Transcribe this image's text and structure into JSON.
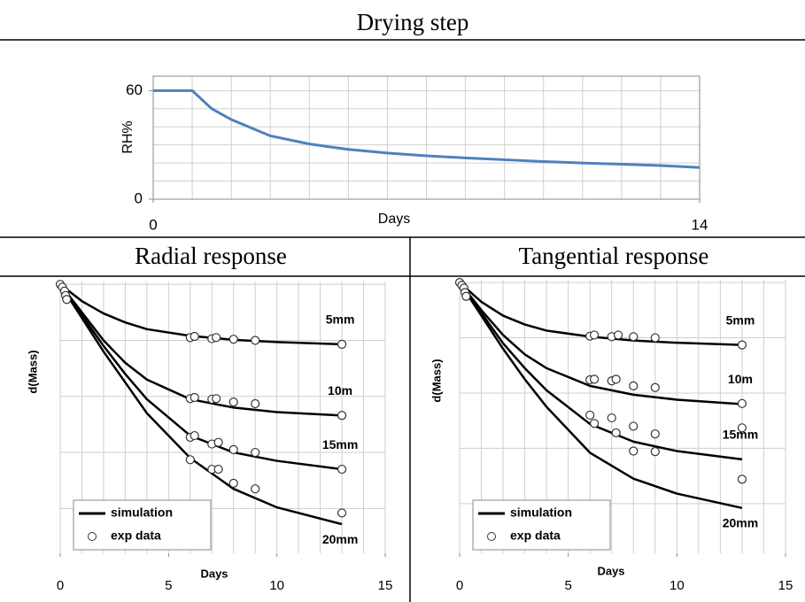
{
  "chart_data": [
    {
      "type": "line",
      "title": "Drying step",
      "xlabel": "Days",
      "ylabel": "RH%",
      "x": [
        0,
        1,
        1.5,
        2,
        3,
        4,
        5,
        6,
        7,
        8,
        9,
        10,
        11,
        12,
        13,
        14
      ],
      "series": [
        {
          "color": "#4f81bd",
          "values": [
            60,
            60,
            50,
            44,
            35,
            30.5,
            27.5,
            25.5,
            24,
            22.8,
            21.8,
            20.8,
            20,
            19.3,
            18.6,
            17.5
          ]
        }
      ],
      "xlim": [
        0,
        14
      ],
      "xticks": [
        0,
        14
      ],
      "ylim": [
        0,
        68
      ],
      "yticks": [
        0,
        60
      ],
      "xgrid_step": 1,
      "ygrid_step": 10
    },
    {
      "type": "line",
      "title": "Radial response",
      "xlabel": "Days",
      "ylabel": "d(Mass)",
      "xlim": [
        0,
        15
      ],
      "xticks": [
        0,
        5,
        10,
        15
      ],
      "ylim": [
        -4.8,
        0.05
      ],
      "xgrid_step": 1,
      "ygrid_step": 1,
      "legend": "lower left",
      "series": [
        {
          "name": "simulation",
          "color": "#000000",
          "lines": [
            {
              "label": "5mm",
              "x": [
                0,
                1,
                2,
                3,
                4,
                6,
                8,
                10,
                13
              ],
              "values": [
                0,
                -0.3,
                -0.52,
                -0.68,
                -0.8,
                -0.92,
                -0.99,
                -1.03,
                -1.07
              ]
            },
            {
              "label": "10m",
              "x": [
                0,
                1,
                2,
                3,
                4,
                6,
                8,
                10,
                13
              ],
              "values": [
                0,
                -0.5,
                -1.0,
                -1.4,
                -1.7,
                -2.05,
                -2.2,
                -2.28,
                -2.34
              ]
            },
            {
              "label": "15mm",
              "x": [
                0,
                1,
                2,
                3,
                4,
                6,
                8,
                10,
                13
              ],
              "values": [
                0,
                -0.55,
                -1.1,
                -1.6,
                -2.05,
                -2.7,
                -3.0,
                -3.15,
                -3.3
              ]
            },
            {
              "label": "20mm",
              "x": [
                0,
                1,
                2,
                3,
                4,
                6,
                8,
                10,
                13
              ],
              "values": [
                0,
                -0.6,
                -1.2,
                -1.75,
                -2.3,
                -3.1,
                -3.65,
                -3.98,
                -4.28
              ]
            }
          ]
        },
        {
          "name": "exp data",
          "color": "#333333",
          "x": [
            0,
            0.1,
            0.2,
            0.25,
            0.3,
            6,
            6.2,
            7,
            7.2,
            8,
            9,
            13,
            6,
            6.2,
            7,
            7.2,
            8,
            9,
            13,
            6,
            6.2,
            7,
            7.3,
            8,
            9,
            13,
            6,
            7,
            7.3,
            8,
            9,
            13
          ],
          "values": [
            0,
            -0.05,
            -0.12,
            -0.2,
            -0.27,
            -0.95,
            -0.93,
            -0.97,
            -0.95,
            -0.98,
            -1.0,
            -1.07,
            -2.04,
            -2.02,
            -2.05,
            -2.04,
            -2.1,
            -2.13,
            -2.34,
            -2.73,
            -2.7,
            -2.85,
            -2.82,
            -2.95,
            -3.0,
            -3.3,
            -3.13,
            -3.3,
            -3.3,
            -3.55,
            -3.65,
            -4.08
          ]
        }
      ]
    },
    {
      "type": "line",
      "title": "Tangential response",
      "xlabel": "Days",
      "ylabel": "d(Mass)",
      "xlim": [
        0,
        15
      ],
      "xticks": [
        0,
        5,
        10,
        15
      ],
      "ylim": [
        -4.9,
        0.05
      ],
      "xgrid_step": 1,
      "ygrid_step": 1,
      "legend": "lower left",
      "series": [
        {
          "name": "simulation",
          "color": "#000000",
          "lines": [
            {
              "label": "5mm",
              "x": [
                0,
                1,
                2,
                3,
                4,
                6,
                8,
                10,
                13
              ],
              "values": [
                0,
                -0.35,
                -0.6,
                -0.76,
                -0.87,
                -0.98,
                -1.05,
                -1.09,
                -1.13
              ]
            },
            {
              "label": "10m",
              "x": [
                0,
                1,
                2,
                3,
                4,
                6,
                8,
                10,
                13
              ],
              "values": [
                0,
                -0.5,
                -0.95,
                -1.3,
                -1.55,
                -1.87,
                -2.03,
                -2.12,
                -2.2
              ]
            },
            {
              "label": "15mm",
              "x": [
                0,
                1,
                2,
                3,
                4,
                6,
                8,
                10,
                13
              ],
              "values": [
                0,
                -0.55,
                -1.1,
                -1.55,
                -1.95,
                -2.56,
                -2.88,
                -3.05,
                -3.2
              ]
            },
            {
              "label": "20mm",
              "x": [
                0,
                1,
                2,
                3,
                4,
                6,
                8,
                10,
                13
              ],
              "values": [
                0,
                -0.6,
                -1.2,
                -1.75,
                -2.25,
                -3.08,
                -3.55,
                -3.82,
                -4.08
              ]
            }
          ]
        },
        {
          "name": "exp data",
          "color": "#333333",
          "x": [
            0,
            0.1,
            0.2,
            0.25,
            0.3,
            6,
            6.2,
            7,
            7.3,
            8,
            9,
            13,
            6,
            6.2,
            7,
            7.2,
            8,
            9,
            13,
            6,
            6.2,
            7,
            7.2,
            8,
            9,
            13,
            8,
            9,
            13
          ],
          "values": [
            0,
            -0.05,
            -0.1,
            -0.18,
            -0.25,
            -0.97,
            -0.95,
            -0.98,
            -0.95,
            -0.98,
            -1.0,
            -1.13,
            -1.76,
            -1.75,
            -1.78,
            -1.75,
            -1.87,
            -1.9,
            -2.19,
            -2.4,
            -2.55,
            -2.45,
            -2.72,
            -2.6,
            -2.74,
            -2.63,
            -3.05,
            -3.06,
            -3.56
          ]
        }
      ]
    }
  ]
}
